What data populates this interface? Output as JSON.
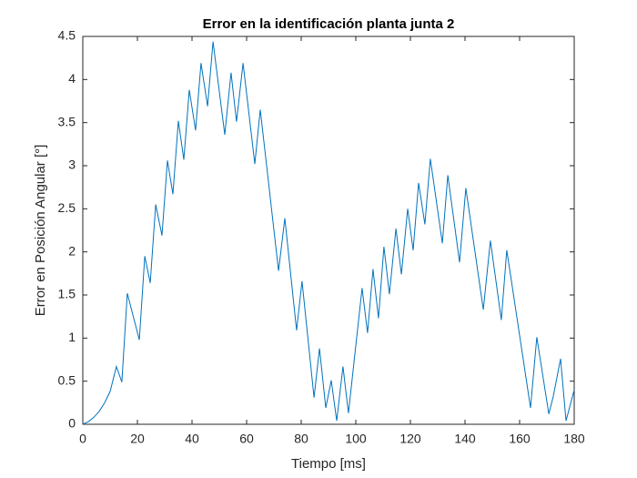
{
  "chart_data": {
    "type": "line",
    "title": "Error en la identificación planta junta 2",
    "x_label": "Tiempo [ms]",
    "y_label": "Error en Posición Angular [°]",
    "x": [
      0,
      2,
      4,
      6,
      8,
      10,
      12.3,
      14.3,
      16.3,
      20.7,
      22.7,
      24.7,
      26.7,
      29,
      31,
      33,
      35,
      37,
      39,
      41.3,
      43.3,
      45.7,
      47.7,
      52,
      54.3,
      56.3,
      58.7,
      63,
      65,
      71.7,
      74,
      78.3,
      80.3,
      84.7,
      86.7,
      89,
      91,
      93,
      95.3,
      97.3,
      102.3,
      104.3,
      106.3,
      108.3,
      110.3,
      112.3,
      114.7,
      116.7,
      119,
      121,
      123,
      125.3,
      127.3,
      131.7,
      133.7,
      138,
      140.3,
      146.7,
      149.3,
      153.3,
      155.3,
      164,
      166.3,
      170.7,
      172.3,
      175,
      177,
      180
    ],
    "series": [
      {
        "name": "Error",
        "color": "#0072bd",
        "values": [
          0,
          0.03,
          0.08,
          0.15,
          0.25,
          0.38,
          0.67,
          0.49,
          1.52,
          0.98,
          1.95,
          1.64,
          2.55,
          2.19,
          3.06,
          2.67,
          3.52,
          3.07,
          3.88,
          3.41,
          4.19,
          3.69,
          4.44,
          3.36,
          4.08,
          3.51,
          4.19,
          3.02,
          3.65,
          1.78,
          2.39,
          1.09,
          1.66,
          0.31,
          0.88,
          0.19,
          0.51,
          0.04,
          0.67,
          0.13,
          1.58,
          1.06,
          1.8,
          1.23,
          2.06,
          1.51,
          2.27,
          1.74,
          2.5,
          2.02,
          2.8,
          2.32,
          3.08,
          2.1,
          2.89,
          1.88,
          2.74,
          1.33,
          2.13,
          1.21,
          2.02,
          0.19,
          1.01,
          0.12,
          0.32,
          0.76,
          0.04,
          0.4
        ]
      }
    ],
    "xlim": [
      0,
      180
    ],
    "xticks": [
      0,
      20,
      40,
      60,
      80,
      100,
      120,
      140,
      160,
      180
    ],
    "ylim": [
      0,
      4.5
    ],
    "yticks": [
      0,
      0.5,
      1,
      1.5,
      2,
      2.5,
      3,
      3.5,
      4,
      4.5
    ]
  }
}
